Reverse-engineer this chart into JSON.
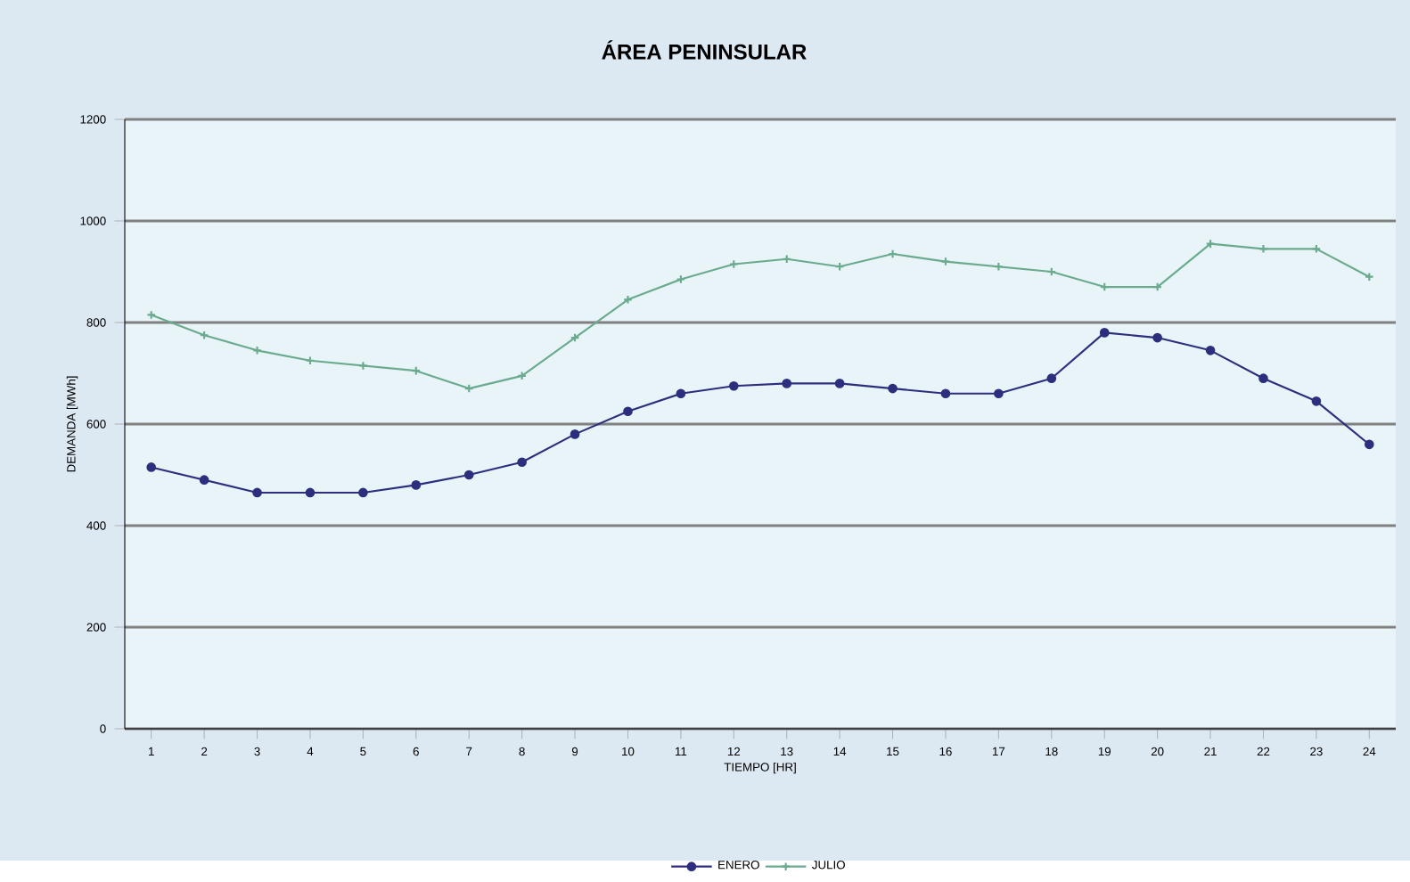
{
  "chart_data": {
    "type": "line",
    "title": "ÁREA PENINSULAR",
    "xlabel": "TIEMPO [HR]",
    "ylabel": "DEMANDA [MWh]",
    "categories": [
      "1",
      "2",
      "3",
      "4",
      "5",
      "6",
      "7",
      "8",
      "9",
      "10",
      "11",
      "12",
      "13",
      "14",
      "15",
      "16",
      "17",
      "18",
      "19",
      "20",
      "21",
      "22",
      "23",
      "24"
    ],
    "series": [
      {
        "name": "ENERO",
        "color": "#2e2e7e",
        "marker": "circle",
        "values": [
          515,
          490,
          465,
          465,
          465,
          480,
          500,
          525,
          580,
          625,
          660,
          675,
          680,
          680,
          670,
          660,
          660,
          690,
          780,
          770,
          745,
          690,
          645,
          560
        ]
      },
      {
        "name": "JULIO",
        "color": "#6aaa8e",
        "marker": "cross",
        "values": [
          815,
          775,
          745,
          725,
          715,
          705,
          670,
          695,
          770,
          845,
          885,
          915,
          925,
          910,
          935,
          920,
          910,
          900,
          870,
          870,
          955,
          945,
          945,
          890
        ]
      }
    ],
    "ylim": [
      0,
      1200
    ],
    "yticks": [
      0,
      200,
      400,
      600,
      800,
      1000,
      1200
    ],
    "grid": "y",
    "legend": "bottom",
    "line_style": "solid"
  }
}
